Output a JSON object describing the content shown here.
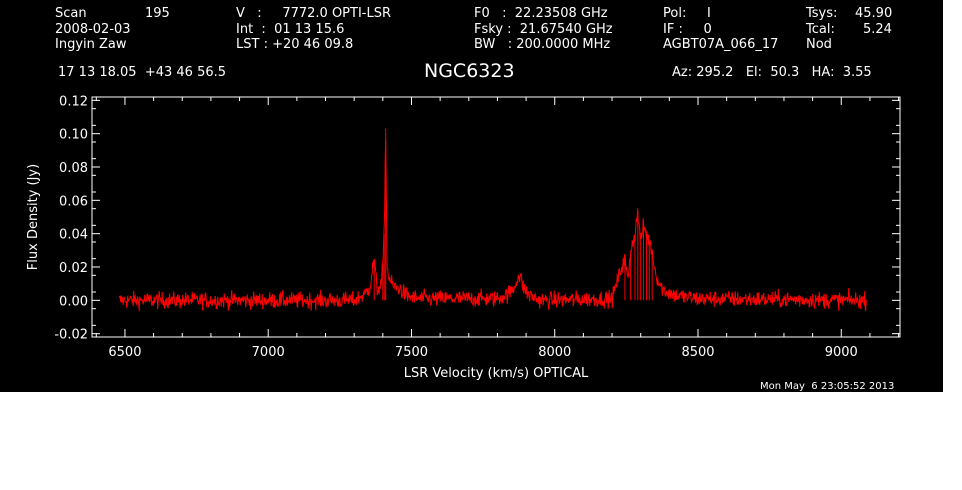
{
  "header": {
    "col1": {
      "scan_label": "Scan",
      "scan_value": "195",
      "date": "2008-02-03",
      "observer": "Ingyin Zaw"
    },
    "col2": {
      "v": "V   :     7772.0 OPTI-LSR",
      "int": "Int  :  01 13 15.6",
      "lst": "LST : +20 46 09.8"
    },
    "col3": {
      "f0": "F0   :  22.23508 GHz",
      "fsky": "Fsky :  21.67540 GHz",
      "bw": "BW   : 200.0000 MHz"
    },
    "col4": {
      "pol": "Pol:     I",
      "if": "IF :     0",
      "project": "AGBT07A_066_17"
    },
    "col5": {
      "tsys_label": "Tsys:",
      "tsys_value": "45.90",
      "tcal_label": "Tcal:",
      "tcal_value": "5.24",
      "mode": "Nod"
    },
    "coords": "17 13 18.05  +43 46 56.5",
    "source": "NGC6323",
    "pointing": "Az: 295.2   El:  50.3   HA:  3.55",
    "timestamp": "Mon May  6 23:05:52 2013"
  },
  "colors": {
    "background": "#000000",
    "foreground": "#ffffff",
    "series": "#ff0000"
  },
  "chart_data": {
    "type": "line",
    "xlabel": "LSR Velocity (km/s) OPTICAL",
    "ylabel": "Flux Density (Jy)",
    "xlim": [
      6385,
      9205
    ],
    "ylim": [
      -0.022,
      0.122
    ],
    "xticks": [
      6500,
      7000,
      7500,
      8000,
      8500,
      9000
    ],
    "yticks": [
      -0.02,
      0.0,
      0.02,
      0.04,
      0.06,
      0.08,
      0.1,
      0.12
    ],
    "xtick_labels": [
      "6500",
      "7000",
      "7500",
      "8000",
      "8500",
      "9000"
    ],
    "ytick_labels": [
      "-0.02",
      "0.00",
      "0.02",
      "0.04",
      "0.06",
      "0.08",
      "0.10",
      "0.12"
    ],
    "x_range": [
      6480,
      9090
    ],
    "noise_rms": 0.0025,
    "grid": false,
    "series": [
      {
        "x": [
          6480,
          7300,
          7340,
          7355,
          7370,
          7380,
          7395,
          7400,
          7405,
          7410,
          7415,
          7420,
          7430,
          7440,
          7460,
          7480,
          7520,
          7800,
          7840,
          7860,
          7870,
          7880,
          7890,
          7910,
          7950,
          8200,
          8230,
          8245,
          8255,
          8265,
          8280,
          8290,
          8300,
          8310,
          8320,
          8330,
          8340,
          8350,
          8365,
          8380,
          8420,
          8500,
          9090
        ],
        "y": [
          0.0,
          0.0,
          0.004,
          0.008,
          0.025,
          0.006,
          0.01,
          0.022,
          0.04,
          0.103,
          0.02,
          0.015,
          0.01,
          0.008,
          0.007,
          0.003,
          0.001,
          0.001,
          0.004,
          0.008,
          0.014,
          0.014,
          0.008,
          0.003,
          0.0,
          0.001,
          0.018,
          0.025,
          0.012,
          0.03,
          0.04,
          0.053,
          0.035,
          0.045,
          0.04,
          0.035,
          0.03,
          0.018,
          0.01,
          0.006,
          0.003,
          0.001,
          0.0
        ]
      }
    ]
  }
}
